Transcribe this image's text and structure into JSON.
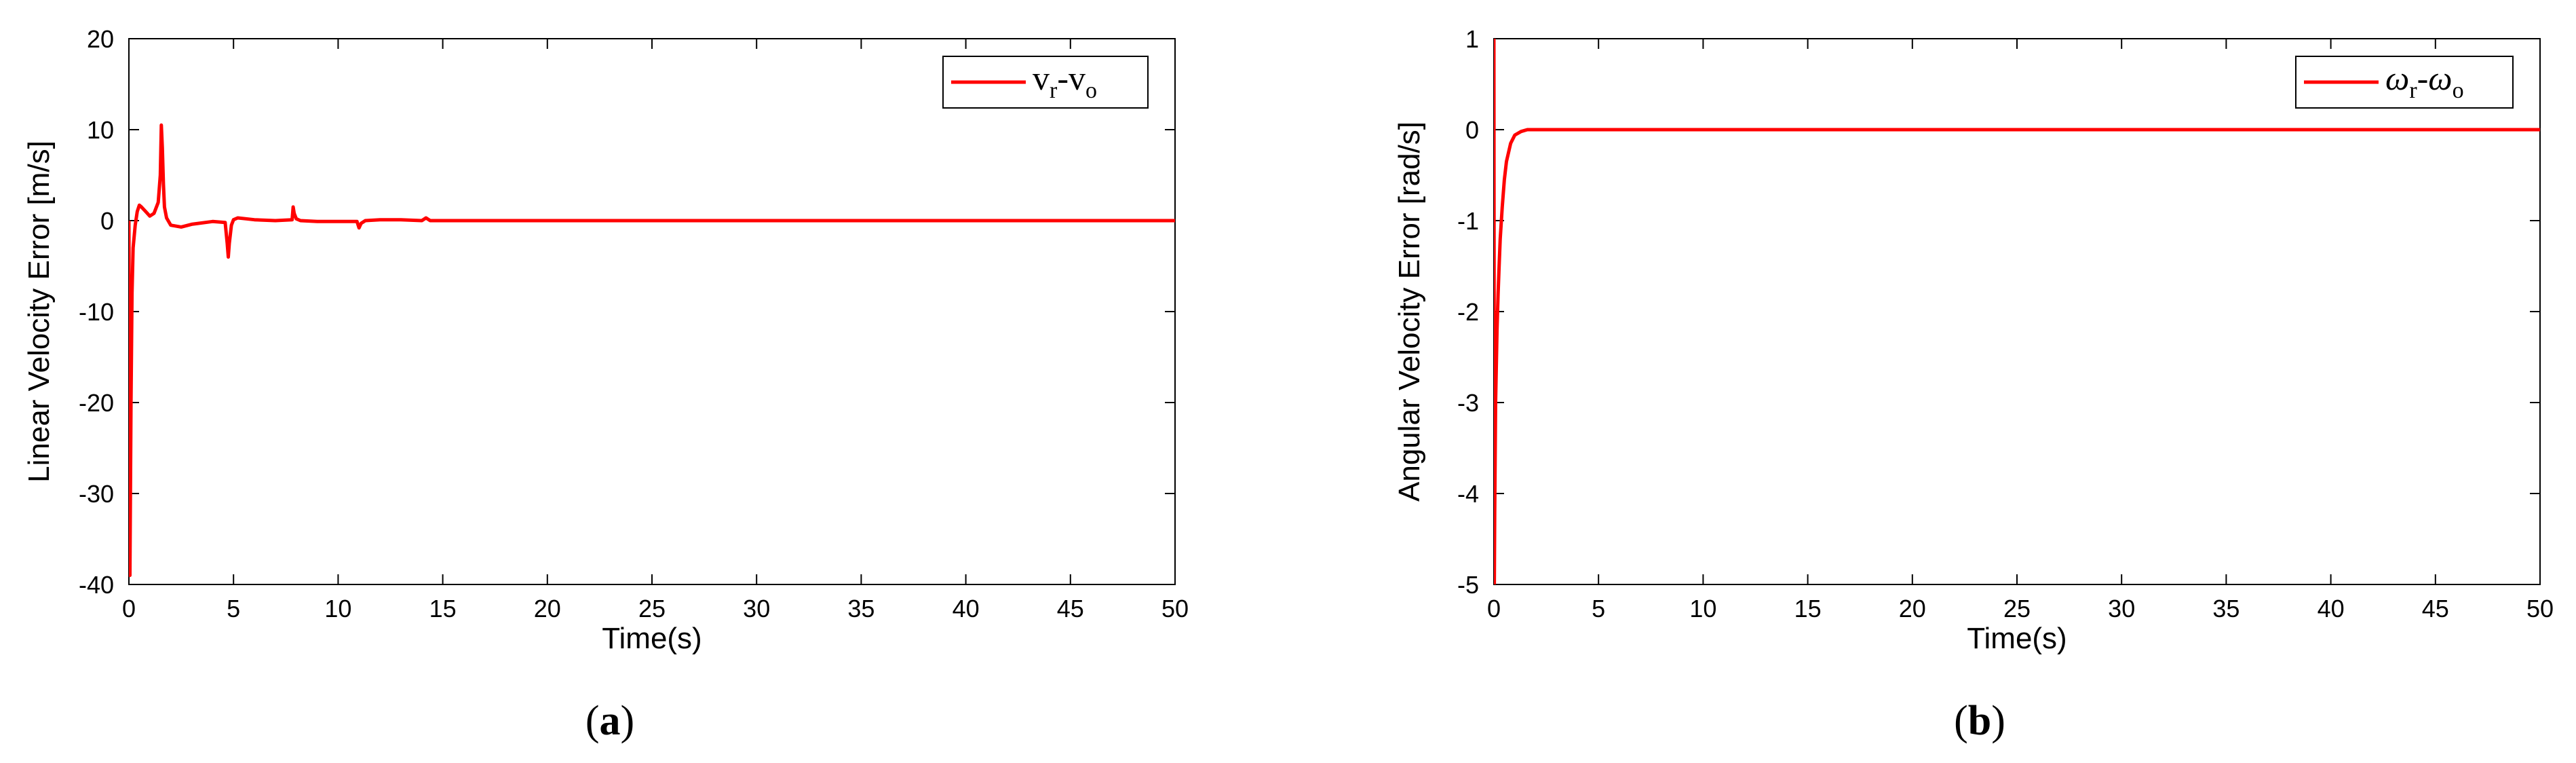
{
  "chart_data": [
    {
      "id": "a",
      "type": "line",
      "caption": "a",
      "xlabel": "Time(s)",
      "ylabel": "Linear Velocity Error [m/s]",
      "xlim": [
        0,
        50
      ],
      "ylim": [
        -40,
        20
      ],
      "xticks": [
        0,
        5,
        10,
        15,
        20,
        25,
        30,
        35,
        40,
        45,
        50
      ],
      "yticks": [
        -40,
        -30,
        -20,
        -10,
        0,
        10,
        20
      ],
      "grid": false,
      "legend_position": "top-right",
      "series": [
        {
          "name": "v_r-v_o",
          "legend_base1": "v",
          "legend_sub1": "r",
          "legend_sep": "-",
          "legend_base2": "v",
          "legend_sub2": "o",
          "color": "#ff0000",
          "x": [
            0,
            0.05,
            0.1,
            0.15,
            0.2,
            0.3,
            0.4,
            0.5,
            0.6,
            0.8,
            1.0,
            1.2,
            1.4,
            1.5,
            1.55,
            1.6,
            1.65,
            1.7,
            1.8,
            2.0,
            2.5,
            3.0,
            4.0,
            4.6,
            4.7,
            4.75,
            4.8,
            4.9,
            5.0,
            5.2,
            5.6,
            6.0,
            7.0,
            7.8,
            7.85,
            7.9,
            8.0,
            8.2,
            9.0,
            10.0,
            10.9,
            11.0,
            11.1,
            11.3,
            12.0,
            13.0,
            14.0,
            14.2,
            14.4,
            15.0,
            20.0,
            30.0,
            40.0,
            50.0
          ],
          "y": [
            0,
            -39,
            -20,
            -8,
            -3,
            -0.5,
            1.0,
            1.7,
            1.5,
            1.0,
            0.5,
            0.8,
            2.0,
            5.0,
            10.5,
            8.0,
            4.0,
            1.5,
            0.3,
            -0.5,
            -0.7,
            -0.4,
            -0.1,
            -0.2,
            -2.5,
            -4.0,
            -2.5,
            -0.5,
            0.1,
            0.3,
            0.2,
            0.1,
            0.0,
            0.1,
            1.5,
            0.8,
            0.2,
            0.0,
            -0.1,
            -0.1,
            -0.1,
            -0.8,
            -0.3,
            0.0,
            0.1,
            0.1,
            0.0,
            0.3,
            0.0,
            0.0,
            0.0,
            0.0,
            0.0,
            0.0
          ]
        }
      ]
    },
    {
      "id": "b",
      "type": "line",
      "caption": "b",
      "xlabel": "Time(s)",
      "ylabel": "Angular Velocity Error [rad/s]",
      "xlim": [
        0,
        50
      ],
      "ylim": [
        -5,
        1
      ],
      "xticks": [
        0,
        5,
        10,
        15,
        20,
        25,
        30,
        35,
        40,
        45,
        50
      ],
      "yticks": [
        -5,
        -4,
        -3,
        -2,
        -1,
        0,
        1
      ],
      "grid": false,
      "legend_position": "top-right",
      "series": [
        {
          "name": "ω_r-ω_o",
          "legend_base1": "ω",
          "legend_sub1": "r",
          "legend_sep": "-",
          "legend_base2": "ω",
          "legend_sub2": "o",
          "color": "#ff0000",
          "x": [
            0,
            0.02,
            0.04,
            0.08,
            0.15,
            0.2,
            0.25,
            0.3,
            0.4,
            0.5,
            0.6,
            0.8,
            1.0,
            1.3,
            1.6,
            2.0,
            10.0,
            50.0
          ],
          "y": [
            1.0,
            -5.0,
            -4.2,
            -3.0,
            -2.2,
            -1.8,
            -1.5,
            -1.2,
            -0.85,
            -0.55,
            -0.35,
            -0.15,
            -0.06,
            -0.02,
            0.0,
            0.0,
            0.0,
            0.0
          ]
        }
      ]
    }
  ]
}
